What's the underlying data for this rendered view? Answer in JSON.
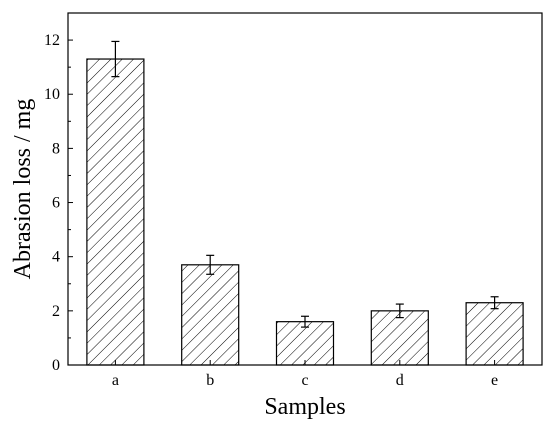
{
  "chart_data": {
    "type": "bar",
    "title": "",
    "xlabel": "Samples",
    "ylabel": "Abrasion loss / mg",
    "categories": [
      "a",
      "b",
      "c",
      "d",
      "e"
    ],
    "values": [
      11.3,
      3.7,
      1.6,
      2.0,
      2.3
    ],
    "errors": [
      0.65,
      0.35,
      0.2,
      0.25,
      0.22
    ],
    "ylim": [
      0,
      13
    ],
    "yticks": [
      0,
      2,
      4,
      6,
      8,
      10,
      12
    ],
    "yticks_labels": [
      "0",
      "2",
      "4",
      "6",
      "8",
      "10",
      "12"
    ],
    "grid": false,
    "legend": "none",
    "bar_fill": "diagonal-hatch",
    "colors": {
      "bar_stroke": "#000000",
      "hatch": "#000000",
      "background": "#ffffff"
    }
  }
}
